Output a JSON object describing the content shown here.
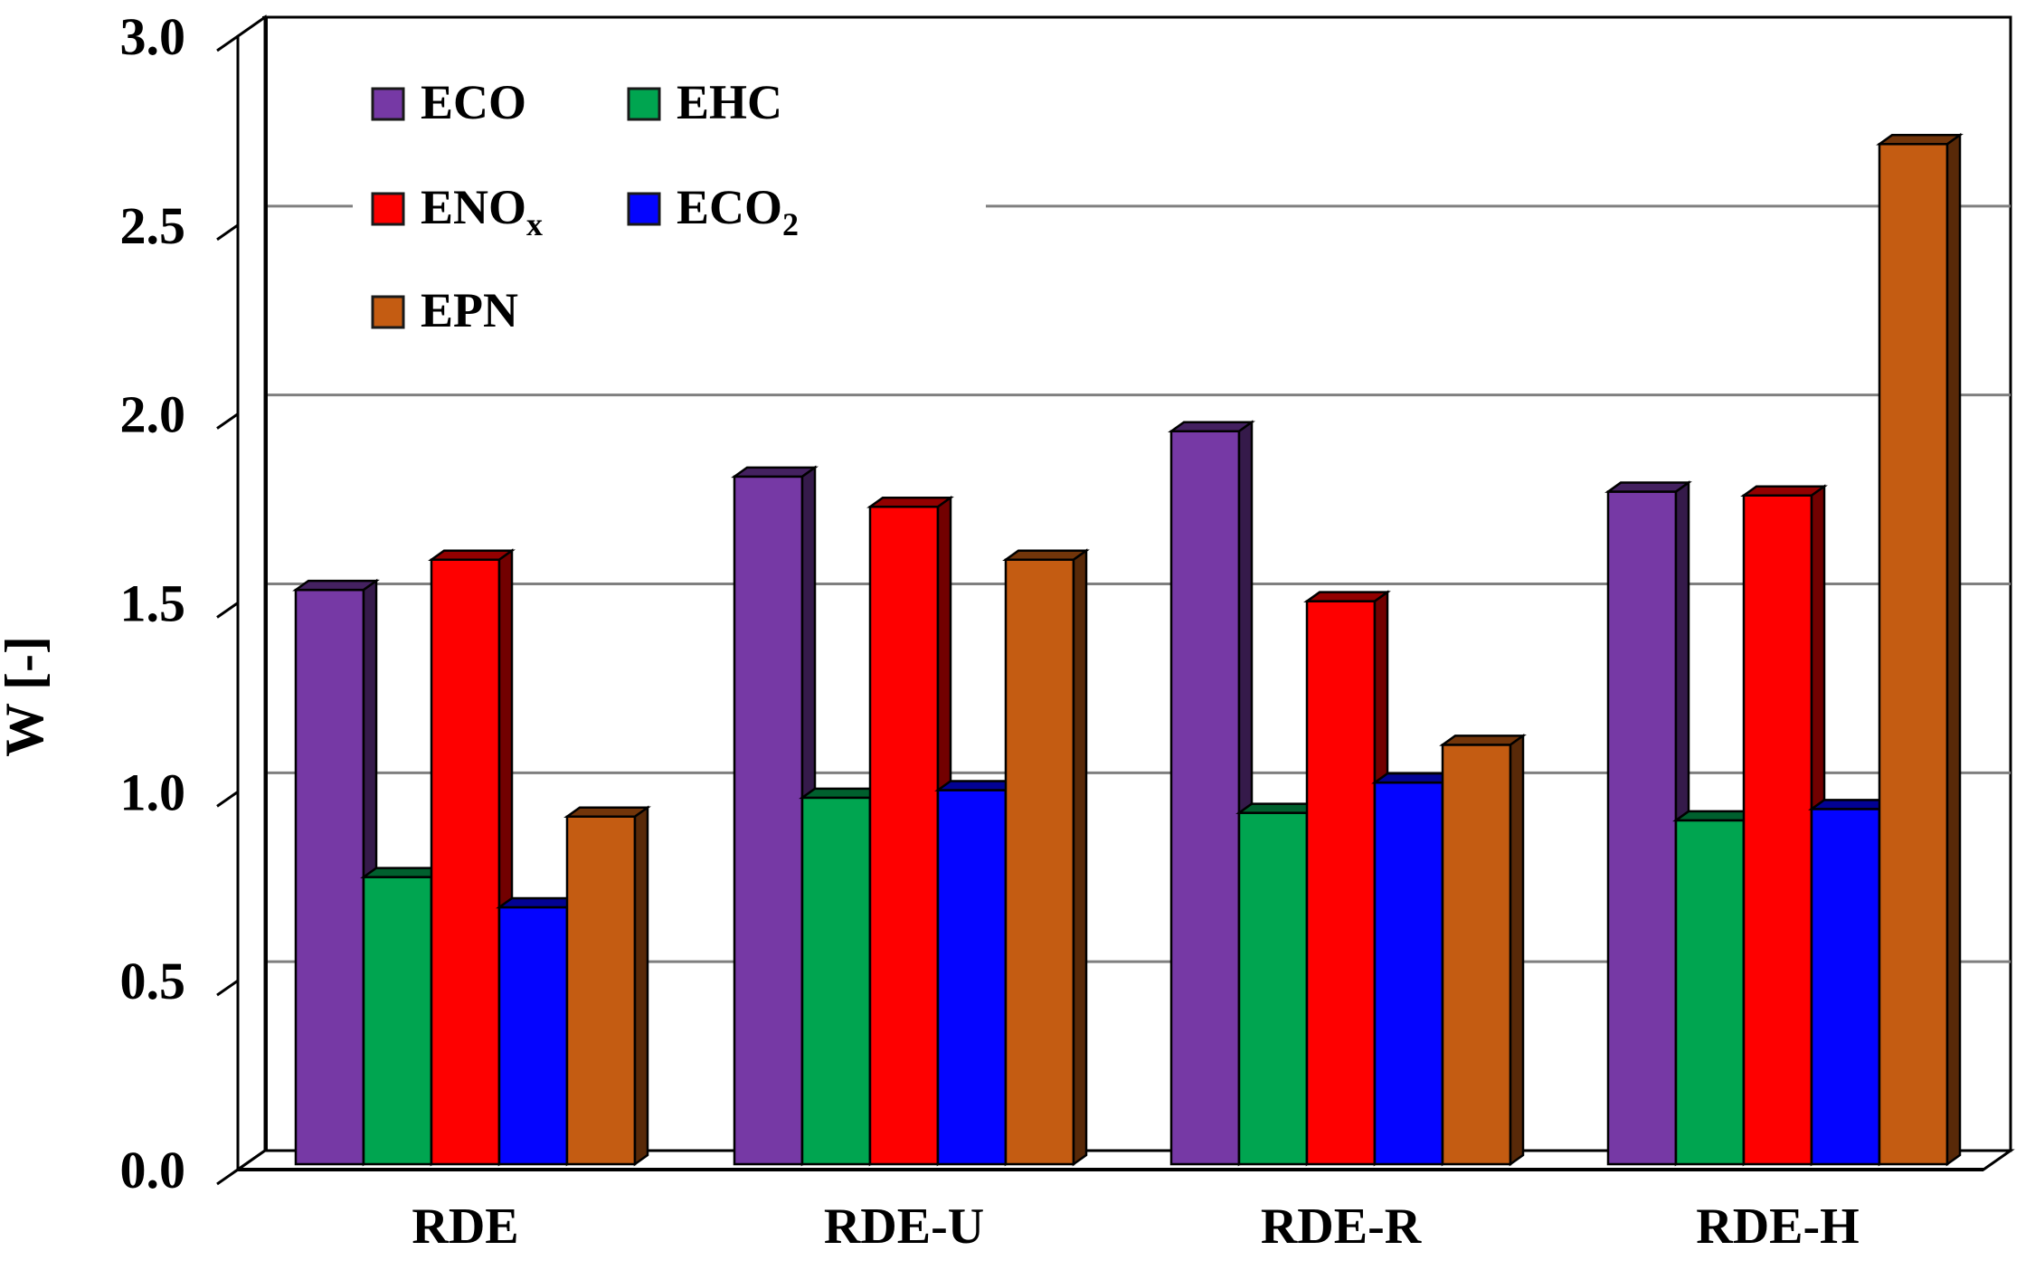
{
  "chart_data": {
    "type": "bar",
    "style": "3d-clustered-column",
    "title": "",
    "xlabel": "",
    "ylabel": "W [-]",
    "ylim": [
      0.0,
      3.0
    ],
    "ytick_step": 0.5,
    "ytick_labels": [
      "0.0",
      "0.5",
      "1.0",
      "1.5",
      "2.0",
      "2.5",
      "3.0"
    ],
    "categories": [
      "RDE",
      "RDE-U",
      "RDE-R",
      "RDE-H"
    ],
    "series": [
      {
        "name": "ECO",
        "sub": "",
        "color": "#7639A5",
        "values": [
          1.52,
          1.82,
          1.94,
          1.78
        ]
      },
      {
        "name": "EHC",
        "sub": "",
        "color": "#00A550",
        "values": [
          0.76,
          0.97,
          0.93,
          0.91
        ]
      },
      {
        "name": "ENO",
        "sub": "x",
        "color": "#FE0000",
        "values": [
          1.6,
          1.74,
          1.49,
          1.77
        ]
      },
      {
        "name": "ECO",
        "sub": "2",
        "color": "#0404FF",
        "values": [
          0.68,
          0.99,
          1.01,
          0.94
        ]
      },
      {
        "name": "EPN",
        "sub": "",
        "color": "#C45C12",
        "values": [
          0.92,
          1.6,
          1.11,
          2.7
        ]
      }
    ],
    "legend_position": "top-left-inside",
    "legend_columns": 2,
    "grid": true,
    "gridcolor": "#7F7F7F",
    "axis_color": "#000000",
    "background": "#FFFFFF"
  }
}
